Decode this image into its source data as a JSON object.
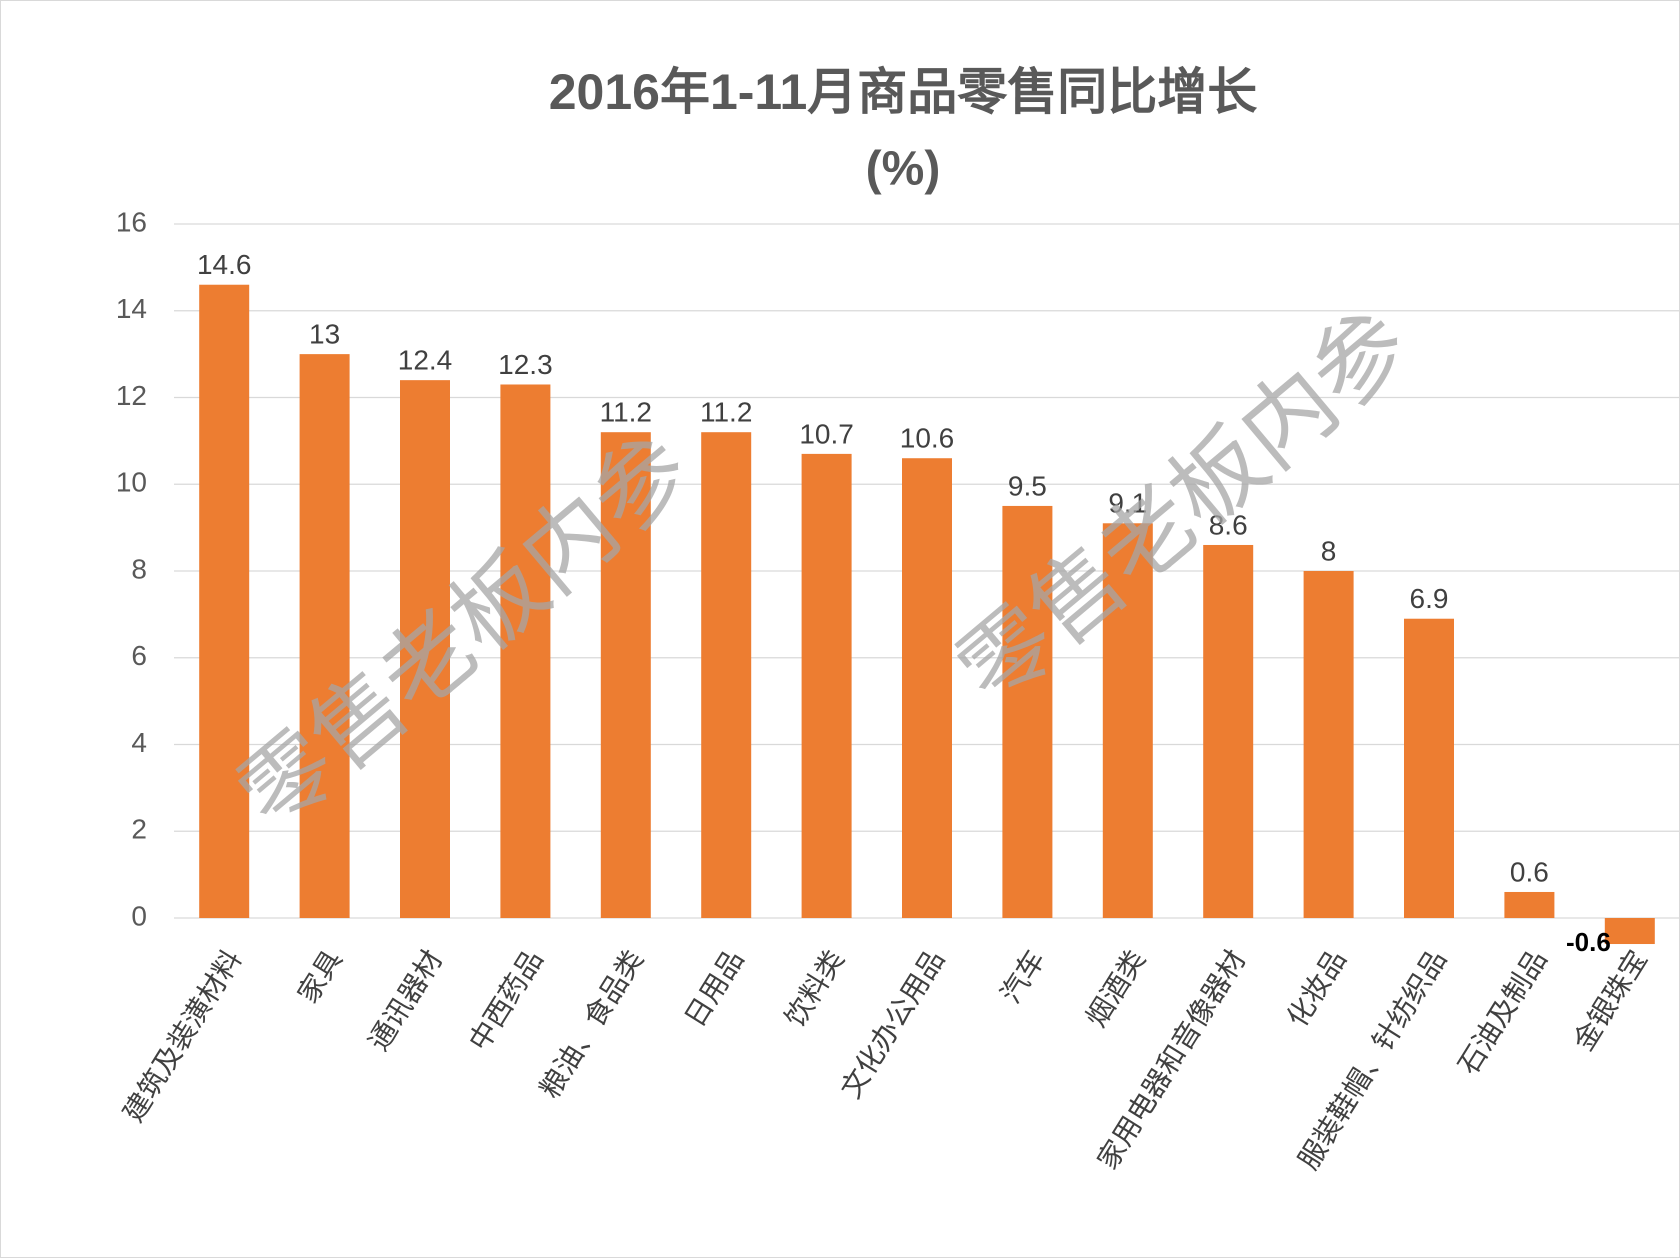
{
  "chart_data": {
    "type": "bar",
    "title": "2016年1-11月商品零售同比增长",
    "subtitle": "(%)",
    "categories": [
      "建筑及装潢材料",
      "家具",
      "通讯器材",
      "中西药品",
      "粮油、食品类",
      "日用品",
      "饮料类",
      "文化办公用品",
      "汽车",
      "烟酒类",
      "家用电器和音像器材",
      "化妆品",
      "服装鞋帽、针纺织品",
      "石油及制品",
      "金银珠宝"
    ],
    "values": [
      14.6,
      13,
      12.4,
      12.3,
      11.2,
      11.2,
      10.7,
      10.6,
      9.5,
      9.1,
      8.6,
      8,
      6.9,
      0.6,
      -0.6
    ],
    "color": "#ed7d31",
    "ylim": [
      0,
      16
    ],
    "yticks": [
      0,
      2,
      4,
      6,
      8,
      10,
      12,
      14,
      16
    ],
    "grid": true,
    "watermarks": [
      "零售老板内参",
      "零售老板内参"
    ]
  }
}
